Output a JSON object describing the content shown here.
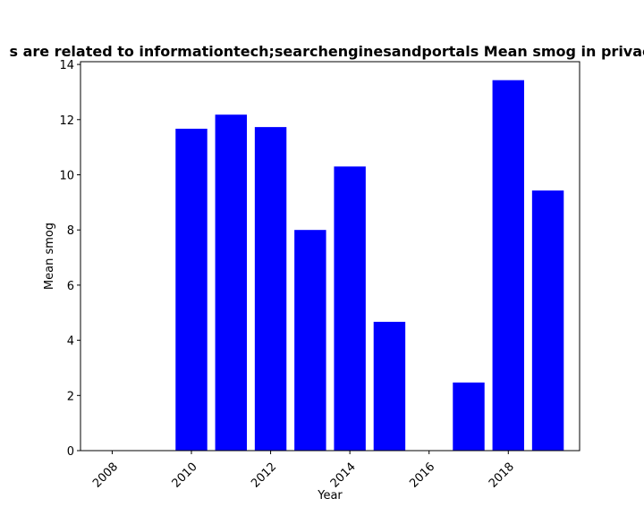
{
  "chart_data": {
    "type": "bar",
    "title": "s are related to informationtech;searchenginesandportals Mean smog in privac",
    "xlabel": "Year",
    "ylabel": "Mean smog",
    "x": [
      2010,
      2011,
      2012,
      2013,
      2014,
      2015,
      2017,
      2018,
      2019
    ],
    "values": [
      11.67,
      12.18,
      11.73,
      8.0,
      10.3,
      4.67,
      2.47,
      13.43,
      9.43
    ],
    "xlim": [
      2007.2,
      2019.8
    ],
    "ylim": [
      0,
      14.1
    ],
    "xticks": [
      2008,
      2010,
      2012,
      2014,
      2016,
      2018
    ],
    "yticks": [
      0,
      2,
      4,
      6,
      8,
      10,
      12,
      14
    ],
    "bar_color": "#0000ff",
    "grid": false
  }
}
